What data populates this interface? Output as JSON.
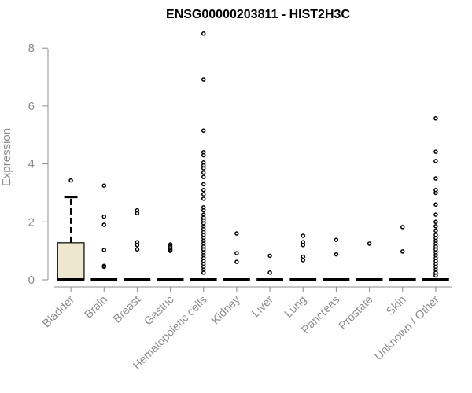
{
  "chart_data": {
    "type": "box",
    "title": "ENSG00000203811 - HIST2H3C",
    "xlabel": "",
    "ylabel": "Expression",
    "ylim": [
      0,
      8.5
    ],
    "yticks": [
      0,
      2,
      4,
      6,
      8
    ],
    "grid": false,
    "box_fill": "#ede7cf",
    "categories": [
      "Bladder",
      "Brain",
      "Breast",
      "Gastric",
      "Hematopoietic cells",
      "Kidney",
      "Liver",
      "Lung",
      "Pancreas",
      "Prostate",
      "Skin",
      "Unknown / Other"
    ],
    "boxes": [
      {
        "category": "Bladder",
        "q1": 0,
        "median": 0,
        "q3": 1.28,
        "whisker_low": 0,
        "whisker_high": 2.85,
        "outliers": [
          3.43
        ]
      },
      {
        "category": "Brain",
        "q1": 0,
        "median": 0,
        "q3": 0,
        "whisker_low": 0,
        "whisker_high": 0,
        "outliers": [
          3.25,
          2.18,
          1.9,
          1.03,
          0.48,
          0.45
        ]
      },
      {
        "category": "Breast",
        "q1": 0,
        "median": 0,
        "q3": 0,
        "whisker_low": 0,
        "whisker_high": 0,
        "outliers": [
          2.4,
          2.3,
          1.3,
          1.2,
          1.05
        ]
      },
      {
        "category": "Gastric",
        "q1": 0,
        "median": 0,
        "q3": 0,
        "whisker_low": 0,
        "whisker_high": 0,
        "outliers": [
          1.22,
          1.15,
          1.05,
          1.0
        ]
      },
      {
        "category": "Hematopoietic cells",
        "q1": 0,
        "median": 0,
        "q3": 0,
        "whisker_low": 0,
        "whisker_high": 0,
        "outliers": [
          8.5,
          6.92,
          5.15,
          4.4,
          4.3,
          4.05,
          3.95,
          3.85,
          3.7,
          3.55,
          3.3,
          3.1,
          2.95,
          2.8,
          2.5,
          2.4,
          2.25,
          2.15,
          2.05,
          1.95,
          1.85,
          1.75,
          1.65,
          1.55,
          1.45,
          1.35,
          1.25,
          1.15,
          1.05,
          0.95,
          0.85,
          0.75,
          0.65,
          0.55,
          0.45,
          0.35,
          0.25
        ]
      },
      {
        "category": "Kidney",
        "q1": 0,
        "median": 0,
        "q3": 0,
        "whisker_low": 0,
        "whisker_high": 0,
        "outliers": [
          1.6,
          0.92,
          0.62
        ]
      },
      {
        "category": "Liver",
        "q1": 0,
        "median": 0,
        "q3": 0,
        "whisker_low": 0,
        "whisker_high": 0,
        "outliers": [
          0.83,
          0.25
        ]
      },
      {
        "category": "Lung",
        "q1": 0,
        "median": 0,
        "q3": 0,
        "whisker_low": 0,
        "whisker_high": 0,
        "outliers": [
          1.52,
          1.3,
          1.2,
          0.8,
          0.68
        ]
      },
      {
        "category": "Pancreas",
        "q1": 0,
        "median": 0,
        "q3": 0,
        "whisker_low": 0,
        "whisker_high": 0,
        "outliers": [
          1.38,
          0.88
        ]
      },
      {
        "category": "Prostate",
        "q1": 0,
        "median": 0,
        "q3": 0,
        "whisker_low": 0,
        "whisker_high": 0,
        "outliers": [
          1.25
        ]
      },
      {
        "category": "Skin",
        "q1": 0,
        "median": 0,
        "q3": 0,
        "whisker_low": 0,
        "whisker_high": 0,
        "outliers": [
          1.82,
          0.98
        ]
      },
      {
        "category": "Unknown / Other",
        "q1": 0,
        "median": 0,
        "q3": 0,
        "whisker_low": 0,
        "whisker_high": 0,
        "outliers": [
          5.57,
          4.42,
          4.1,
          3.5,
          3.1,
          3.0,
          2.6,
          2.25,
          2.0,
          1.85,
          1.7,
          1.55,
          1.45,
          1.35,
          1.25,
          1.15,
          1.05,
          0.95,
          0.85,
          0.75,
          0.65,
          0.55,
          0.45,
          0.35,
          0.25,
          0.15
        ]
      }
    ]
  }
}
